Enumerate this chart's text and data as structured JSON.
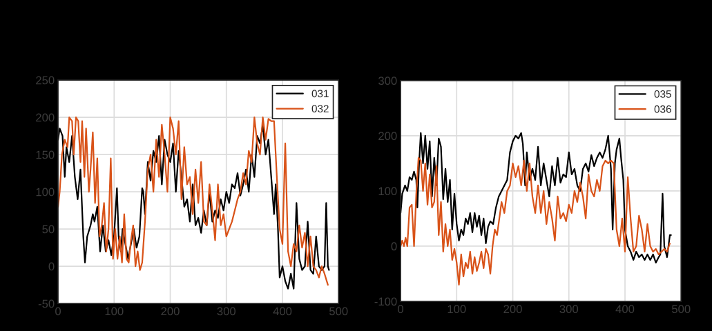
{
  "chart_data": [
    {
      "type": "line",
      "xlim": [
        0,
        500
      ],
      "xticks": [
        0,
        100,
        200,
        300,
        400,
        500
      ],
      "ylim": [
        -50,
        250
      ],
      "yticks": [
        -50,
        0,
        50,
        100,
        150,
        200,
        250
      ],
      "grid": true,
      "legend": "top right",
      "series": [
        {
          "name": "031",
          "color": "#000000",
          "x": [
            0,
            3,
            8,
            12,
            15,
            20,
            25,
            30,
            35,
            40,
            45,
            48,
            52,
            58,
            62,
            65,
            70,
            75,
            80,
            85,
            90,
            95,
            100,
            105,
            108,
            112,
            115,
            120,
            125,
            130,
            135,
            140,
            145,
            150,
            152,
            155,
            160,
            165,
            170,
            175,
            180,
            185,
            190,
            195,
            200,
            205,
            210,
            215,
            220,
            225,
            230,
            235,
            240,
            245,
            250,
            255,
            260,
            265,
            270,
            275,
            280,
            285,
            290,
            295,
            300,
            305,
            310,
            315,
            320,
            325,
            330,
            335,
            340,
            345,
            350,
            355,
            360,
            365,
            370,
            375,
            380,
            385,
            388,
            392,
            395,
            400,
            405,
            410,
            415,
            420,
            425,
            430,
            435,
            440,
            445,
            450,
            455,
            460,
            465,
            470,
            475,
            478,
            481,
            483
          ],
          "values": [
            170,
            185,
            175,
            120,
            160,
            140,
            175,
            120,
            90,
            130,
            40,
            5,
            40,
            55,
            70,
            60,
            80,
            20,
            55,
            20,
            35,
            15,
            42,
            105,
            40,
            20,
            50,
            30,
            10,
            30,
            50,
            25,
            40,
            105,
            100,
            70,
            140,
            115,
            155,
            140,
            175,
            110,
            170,
            150,
            140,
            165,
            100,
            155,
            120,
            80,
            90,
            60,
            110,
            55,
            65,
            45,
            75,
            55,
            100,
            60,
            75,
            65,
            90,
            75,
            100,
            85,
            110,
            105,
            125,
            95,
            110,
            130,
            100,
            150,
            120,
            175,
            165,
            190,
            150,
            170,
            120,
            70,
            110,
            50,
            -15,
            0,
            -20,
            -30,
            -10,
            -30,
            85,
            10,
            -5,
            0,
            60,
            -5,
            -10,
            40,
            0,
            -5,
            0,
            85,
            0,
            -5
          ]
        },
        {
          "name": "032",
          "color": "#d95319",
          "x": [
            0,
            3,
            7,
            12,
            17,
            20,
            25,
            28,
            32,
            36,
            40,
            43,
            47,
            50,
            55,
            58,
            62,
            66,
            70,
            74,
            78,
            82,
            86,
            90,
            94,
            98,
            102,
            106,
            110,
            114,
            118,
            122,
            126,
            130,
            134,
            138,
            142,
            146,
            150,
            155,
            160,
            165,
            170,
            175,
            180,
            185,
            190,
            195,
            200,
            205,
            210,
            215,
            220,
            225,
            230,
            235,
            240,
            245,
            250,
            255,
            260,
            265,
            270,
            275,
            280,
            285,
            290,
            295,
            300,
            305,
            310,
            315,
            320,
            325,
            330,
            335,
            340,
            345,
            350,
            355,
            360,
            365,
            370,
            375,
            380,
            385,
            390,
            395,
            400,
            405,
            410,
            415,
            420,
            425,
            430,
            435,
            440,
            445,
            450,
            455,
            460,
            465,
            470,
            475,
            481
          ],
          "values": [
            80,
            100,
            150,
            170,
            160,
            200,
            195,
            150,
            200,
            195,
            140,
            195,
            120,
            185,
            100,
            130,
            180,
            85,
            145,
            40,
            55,
            85,
            20,
            50,
            145,
            10,
            50,
            10,
            40,
            5,
            70,
            10,
            5,
            35,
            55,
            0,
            20,
            -5,
            5,
            60,
            130,
            150,
            100,
            170,
            120,
            190,
            150,
            100,
            200,
            185,
            150,
            195,
            90,
            160,
            110,
            120,
            70,
            130,
            85,
            140,
            60,
            55,
            110,
            75,
            35,
            110,
            55,
            70,
            40,
            50,
            60,
            75,
            90,
            100,
            125,
            110,
            155,
            140,
            200,
            165,
            150,
            200,
            170,
            198,
            195,
            195,
            120,
            50,
            30,
            165,
            20,
            0,
            30,
            20,
            55,
            25,
            45,
            0,
            40,
            0,
            -5,
            -15,
            0,
            -10,
            -25
          ]
        }
      ]
    },
    {
      "type": "line",
      "xlim": [
        0,
        500
      ],
      "xticks": [
        0,
        100,
        200,
        300,
        400,
        500
      ],
      "ylim": [
        -100,
        300
      ],
      "yticks": [
        -100,
        0,
        100,
        200,
        300
      ],
      "grid": true,
      "legend": "top right",
      "series": [
        {
          "name": "035",
          "color": "#000000",
          "x": [
            0,
            3,
            8,
            12,
            16,
            20,
            24,
            28,
            30,
            33,
            36,
            40,
            44,
            48,
            52,
            56,
            60,
            64,
            68,
            72,
            76,
            80,
            84,
            88,
            92,
            96,
            100,
            104,
            108,
            112,
            116,
            120,
            124,
            128,
            132,
            136,
            140,
            144,
            148,
            152,
            156,
            160,
            165,
            170,
            175,
            180,
            185,
            190,
            195,
            200,
            205,
            210,
            215,
            218,
            222,
            225,
            230,
            235,
            240,
            245,
            250,
            255,
            260,
            265,
            270,
            275,
            280,
            285,
            290,
            295,
            300,
            305,
            310,
            315,
            320,
            325,
            330,
            335,
            340,
            345,
            350,
            355,
            360,
            365,
            370,
            375,
            378,
            382,
            385,
            390,
            393,
            397,
            400,
            405,
            410,
            415,
            420,
            425,
            430,
            435,
            440,
            445,
            450,
            455,
            460,
            463,
            467,
            470,
            475,
            480,
            482
          ],
          "values": [
            60,
            95,
            110,
            100,
            125,
            120,
            135,
            120,
            70,
            150,
            205,
            150,
            200,
            140,
            190,
            90,
            160,
            110,
            195,
            180,
            85,
            140,
            80,
            120,
            30,
            95,
            40,
            10,
            30,
            20,
            50,
            40,
            60,
            25,
            60,
            35,
            55,
            20,
            50,
            5,
            35,
            45,
            40,
            70,
            90,
            100,
            110,
            120,
            170,
            190,
            200,
            195,
            205,
            185,
            110,
            170,
            120,
            140,
            120,
            180,
            110,
            150,
            120,
            90,
            145,
            110,
            160,
            115,
            130,
            125,
            170,
            130,
            140,
            110,
            100,
            140,
            150,
            135,
            165,
            145,
            160,
            170,
            160,
            175,
            200,
            140,
            30,
            150,
            175,
            195,
            160,
            120,
            30,
            0,
            -10,
            -25,
            -10,
            -20,
            -15,
            -25,
            -15,
            -25,
            -15,
            -30,
            -20,
            -15,
            95,
            0,
            -20,
            20,
            20
          ]
        },
        {
          "name": "036",
          "color": "#d95319",
          "x": [
            0,
            3,
            6,
            9,
            12,
            16,
            20,
            24,
            28,
            32,
            36,
            40,
            44,
            48,
            52,
            56,
            60,
            64,
            68,
            72,
            76,
            80,
            84,
            88,
            92,
            96,
            100,
            104,
            108,
            112,
            116,
            120,
            124,
            128,
            132,
            136,
            140,
            144,
            148,
            152,
            156,
            160,
            164,
            168,
            172,
            176,
            180,
            185,
            190,
            195,
            200,
            205,
            210,
            215,
            220,
            225,
            230,
            235,
            240,
            245,
            250,
            255,
            260,
            265,
            270,
            275,
            280,
            285,
            290,
            295,
            300,
            305,
            310,
            315,
            320,
            325,
            330,
            335,
            340,
            345,
            350,
            355,
            360,
            365,
            370,
            375,
            380,
            385,
            390,
            395,
            400,
            405,
            410,
            415,
            420,
            425,
            430,
            435,
            440,
            445,
            450,
            455,
            460,
            465,
            470,
            475,
            480
          ],
          "values": [
            0,
            10,
            0,
            15,
            0,
            70,
            75,
            0,
            95,
            160,
            155,
            100,
            150,
            75,
            130,
            70,
            80,
            145,
            20,
            80,
            -10,
            40,
            0,
            30,
            -25,
            -5,
            -30,
            -70,
            -15,
            -55,
            -30,
            -40,
            -10,
            -50,
            -20,
            -45,
            -30,
            -10,
            -40,
            -5,
            -15,
            -50,
            0,
            30,
            20,
            50,
            80,
            60,
            100,
            110,
            150,
            125,
            145,
            110,
            155,
            100,
            150,
            90,
            60,
            110,
            60,
            100,
            40,
            80,
            50,
            10,
            90,
            50,
            60,
            45,
            75,
            60,
            100,
            80,
            115,
            90,
            50,
            130,
            100,
            90,
            120,
            100,
            145,
            155,
            150,
            155,
            150,
            30,
            0,
            50,
            -10,
            125,
            50,
            -10,
            0,
            55,
            30,
            -10,
            40,
            0,
            -10,
            -5,
            -15,
            -10,
            -5,
            -10,
            5
          ]
        }
      ]
    }
  ]
}
